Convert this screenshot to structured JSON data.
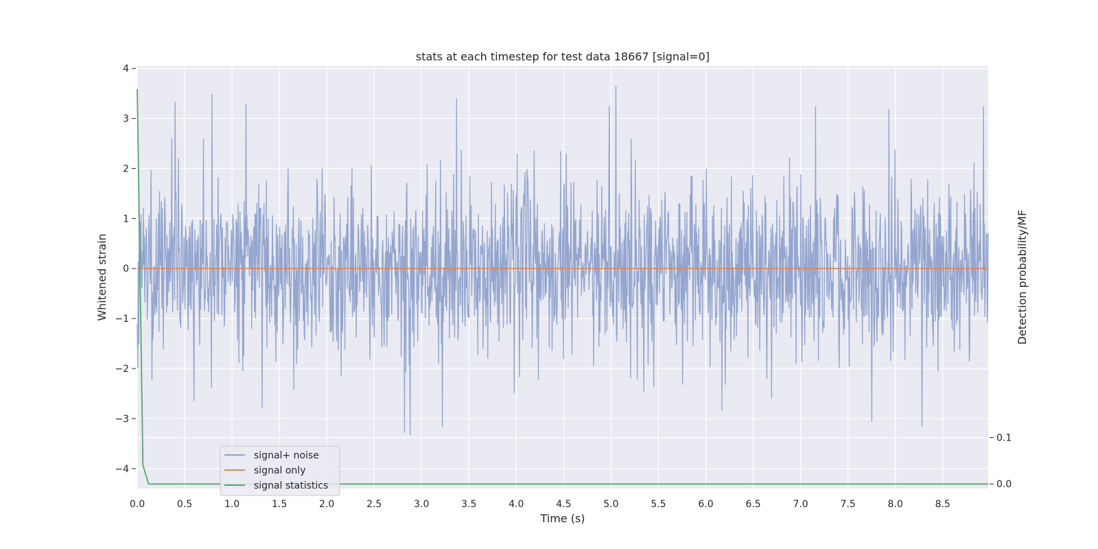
{
  "chart_data": {
    "type": "line",
    "title": "stats at each timestep for test data 18667 [signal=0]",
    "xlabel": "Time (s)",
    "ylabel": "Whitened strain",
    "y2label": "Detection probability/MF",
    "xlim": [
      0.0,
      8.98
    ],
    "ylim": [
      -4.4,
      4.05
    ],
    "y2lim": [
      -0.01,
      0.9
    ],
    "xticks": [
      "0.0",
      "0.5",
      "1.0",
      "1.5",
      "2.0",
      "2.5",
      "3.0",
      "3.5",
      "4.0",
      "4.5",
      "5.0",
      "5.5",
      "6.0",
      "6.5",
      "7.0",
      "7.5",
      "8.0",
      "8.5"
    ],
    "yticks": [
      "4",
      "3",
      "2",
      "1",
      "0",
      "−1",
      "−2",
      "−3",
      "−4"
    ],
    "y2ticks": [
      "0.1",
      "0.0"
    ],
    "grid": true,
    "legend_position": "lower-left",
    "series": [
      {
        "name": "signal+ noise",
        "axis": "left",
        "color": "#8fa2cc",
        "kind": "noise",
        "n_points": 1800,
        "approx_std": 0.75,
        "spikes": [
          [
            0.4,
            3.33
          ],
          [
            0.79,
            3.48
          ],
          [
            1.15,
            3.3
          ],
          [
            3.37,
            3.4
          ],
          [
            5.05,
            3.65
          ],
          [
            4.98,
            3.25
          ],
          [
            7.16,
            3.25
          ],
          [
            7.93,
            3.18
          ],
          [
            8.93,
            3.25
          ],
          [
            2.82,
            -3.28
          ],
          [
            2.88,
            -3.33
          ],
          [
            3.22,
            -3.17
          ],
          [
            7.75,
            -3.07
          ],
          [
            8.28,
            -3.17
          ],
          [
            0.6,
            -2.65
          ],
          [
            1.32,
            -2.8
          ],
          [
            6.17,
            -2.85
          ]
        ]
      },
      {
        "name": "signal only",
        "axis": "left",
        "color": "#dd8452",
        "x": [
          0.0,
          8.98
        ],
        "y": [
          0.0,
          0.0
        ]
      },
      {
        "name": "signal statistics",
        "axis": "right",
        "color": "#55a868",
        "x": [
          0.0,
          0.06,
          0.12,
          8.92,
          8.98
        ],
        "y": [
          0.85,
          0.04,
          0.0,
          0.0,
          0.0
        ]
      }
    ],
    "reference_lines": [
      {
        "axis": "right",
        "y": 0.1,
        "color": "#ffffff"
      }
    ]
  }
}
